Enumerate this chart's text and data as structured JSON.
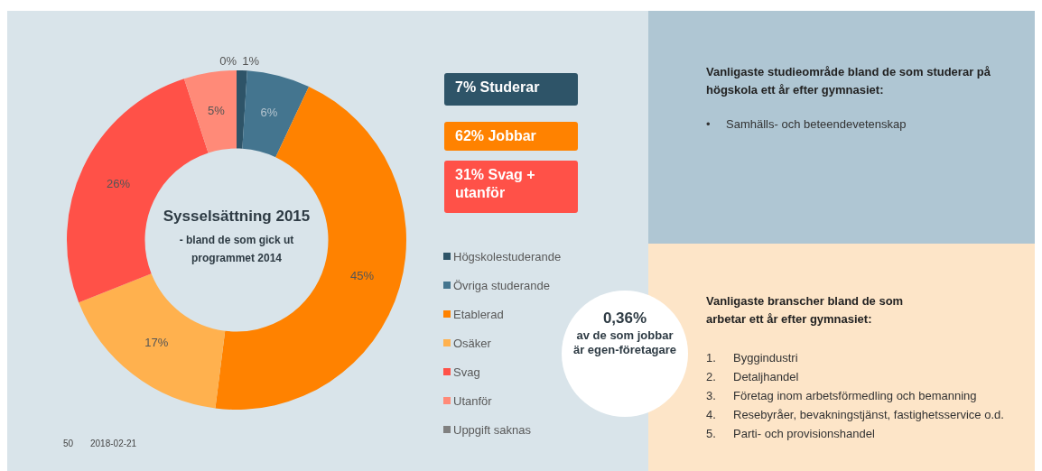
{
  "chart_data": {
    "type": "donut",
    "title": "Sysselsättning 2015",
    "subtitle": "- bland de som gick ut programmet 2014",
    "categories": [
      "Högskolestuderande",
      "Övriga studerande",
      "Etablerad",
      "Osäker",
      "Svag",
      "Utanför",
      "Uppgift saknas"
    ],
    "values": [
      1,
      6,
      45,
      17,
      26,
      5,
      0
    ],
    "colors": [
      "#2e5468",
      "#44758f",
      "#ff8200",
      "#ffb14e",
      "#ff5148",
      "#ff8a78",
      "#808080"
    ],
    "value_labels": [
      "1%",
      "6%",
      "45%",
      "17%",
      "26%",
      "5%",
      "0%"
    ],
    "legend": "right",
    "annotations": [
      "7% Studerar",
      "62% Jobbar",
      "31% Svag + utanför",
      "0,36% av de som jobbar är egen-företagare",
      "Vanligaste studieområde bland de som studerar på högskola ett år efter gymnasiet:",
      "• Samhälls- och beteendevetenskap",
      "Vanligaste branscher bland de som arbetar ett år efter gymnasiet:",
      "1. Byggindustri",
      "2. Detaljhandel",
      "3. Företag inom arbetsförmedling och bemanning",
      "4. Resebyråer, bevakningstjänst, fastighetsservice o.d.",
      "5. Parti- och provisionshandel",
      "50",
      "2018-02-21"
    ]
  }
}
